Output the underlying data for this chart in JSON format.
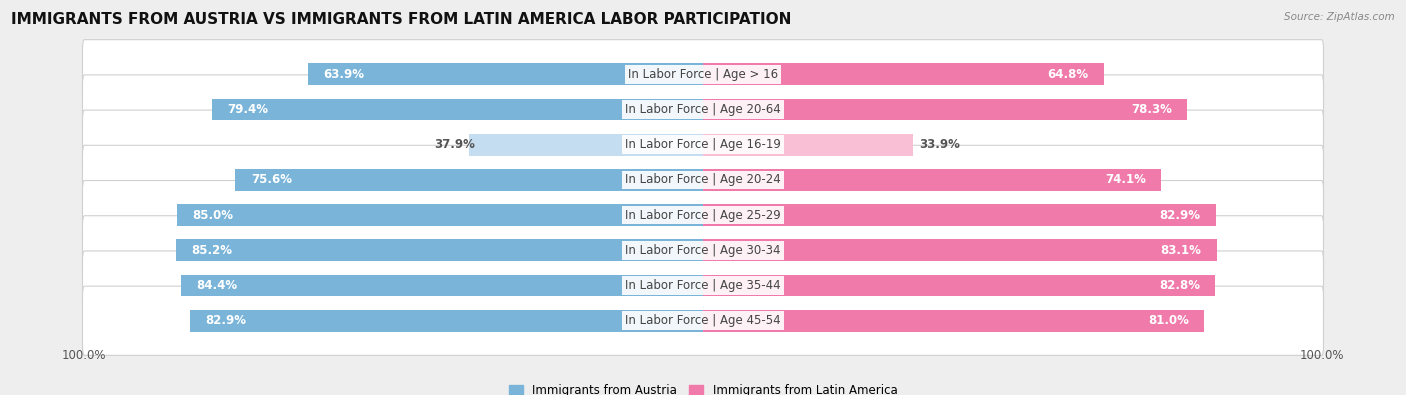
{
  "title": "IMMIGRANTS FROM AUSTRIA VS IMMIGRANTS FROM LATIN AMERICA LABOR PARTICIPATION",
  "source": "Source: ZipAtlas.com",
  "categories": [
    "In Labor Force | Age > 16",
    "In Labor Force | Age 20-64",
    "In Labor Force | Age 16-19",
    "In Labor Force | Age 20-24",
    "In Labor Force | Age 25-29",
    "In Labor Force | Age 30-34",
    "In Labor Force | Age 35-44",
    "In Labor Force | Age 45-54"
  ],
  "austria_values": [
    63.9,
    79.4,
    37.9,
    75.6,
    85.0,
    85.2,
    84.4,
    82.9
  ],
  "latin_values": [
    64.8,
    78.3,
    33.9,
    74.1,
    82.9,
    83.1,
    82.8,
    81.0
  ],
  "austria_color": "#7ab4d8",
  "latin_color": "#f07aaa",
  "austria_light_color": "#c5ddf0",
  "latin_light_color": "#f9c0d5",
  "bg_color": "#eeeeee",
  "title_fontsize": 11,
  "label_fontsize": 8.5,
  "value_fontsize": 8.5,
  "max_val": 100.0,
  "legend_austria": "Immigrants from Austria",
  "legend_latin": "Immigrants from Latin America"
}
